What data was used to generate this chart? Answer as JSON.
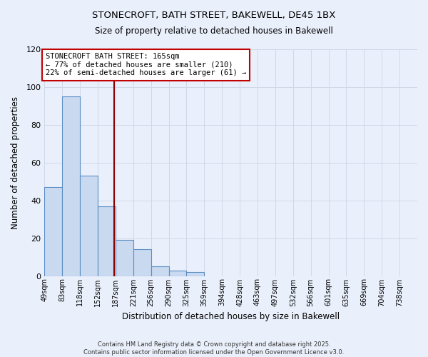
{
  "title_line1": "STONECROFT, BATH STREET, BAKEWELL, DE45 1BX",
  "title_line2": "Size of property relative to detached houses in Bakewell",
  "xlabel": "Distribution of detached houses by size in Bakewell",
  "ylabel": "Number of detached properties",
  "bar_labels": [
    "49sqm",
    "83sqm",
    "118sqm",
    "152sqm",
    "187sqm",
    "221sqm",
    "256sqm",
    "290sqm",
    "325sqm",
    "359sqm",
    "394sqm",
    "428sqm",
    "463sqm",
    "497sqm",
    "532sqm",
    "566sqm",
    "601sqm",
    "635sqm",
    "669sqm",
    "704sqm",
    "738sqm"
  ],
  "bar_values": [
    47,
    95,
    53,
    37,
    19,
    14,
    5,
    3,
    2,
    0,
    0,
    0,
    0,
    0,
    0,
    0,
    0,
    0,
    0,
    0,
    0
  ],
  "bar_color": "#c9d9f0",
  "bar_edge_color": "#5b8ec4",
  "grid_color": "#d0d8e8",
  "background_color": "#eaf0fb",
  "annotation_box_text_line1": "STONECROFT BATH STREET: 165sqm",
  "annotation_box_text_line2": "← 77% of detached houses are smaller (210)",
  "annotation_box_text_line3": "22% of semi-detached houses are larger (61) →",
  "annotation_box_color": "#ffffff",
  "annotation_box_edge": "#c00000",
  "vertical_line_color": "#8b0000",
  "ylim": [
    0,
    120
  ],
  "yticks": [
    0,
    20,
    40,
    60,
    80,
    100,
    120
  ],
  "footnote_line1": "Contains HM Land Registry data © Crown copyright and database right 2025.",
  "footnote_line2": "Contains public sector information licensed under the Open Government Licence v3.0.",
  "bin_edges": [
    32,
    66,
    100,
    134,
    168,
    202,
    236,
    270,
    304,
    338,
    372,
    406,
    440,
    474,
    508,
    542,
    576,
    610,
    644,
    678,
    712,
    746
  ],
  "property_size": 165
}
